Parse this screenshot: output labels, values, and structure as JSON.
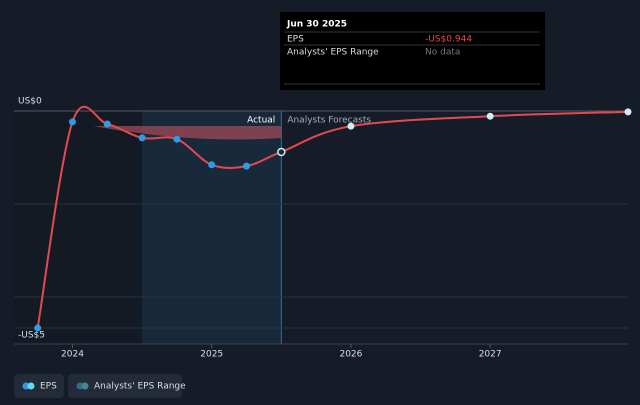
{
  "chart_data": {
    "type": "line",
    "series": [
      {
        "name": "EPS",
        "color": "#e6484f",
        "x": [
          2023.75,
          2024.0,
          2024.25,
          2024.5,
          2024.75,
          2025.0,
          2025.25,
          2025.5,
          2026.0,
          2027.0,
          2027.99
        ],
        "values": [
          -5.0,
          -0.25,
          -0.3,
          -0.62,
          -0.65,
          -1.24,
          -1.27,
          -0.944,
          -0.35,
          -0.12,
          -0.02
        ]
      }
    ],
    "range_legend": "Analysts' EPS Range",
    "actual_label": "Actual",
    "forecast_label": "Analysts Forecasts",
    "divider_x": 2025.5,
    "xlim": [
      2023.58,
      2027.99
    ],
    "xticks": [
      2024,
      2025,
      2026,
      2027
    ],
    "ylim": [
      -5.37,
      0
    ],
    "yticks": [
      {
        "value": 0,
        "label": "US$0"
      },
      {
        "value": -5,
        "label": "-US$5"
      }
    ],
    "tooltip": {
      "date": "Jun 30 2025",
      "rows": [
        [
          "EPS",
          "-US$0.944"
        ],
        [
          "Analysts' EPS Range",
          "No data"
        ]
      ]
    }
  }
}
